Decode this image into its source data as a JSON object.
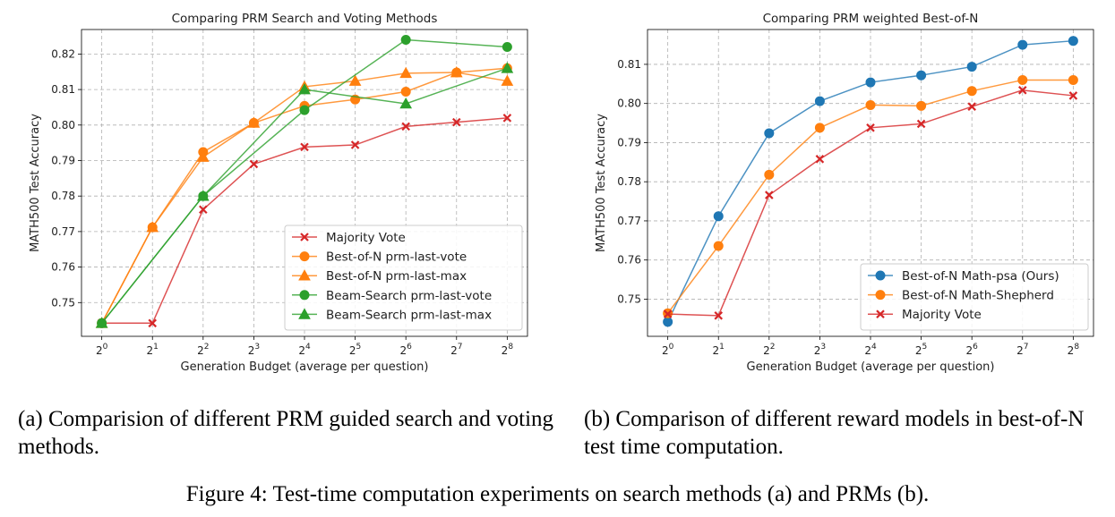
{
  "chart_data": [
    {
      "type": "line",
      "title": "Comparing PRM Search and Voting Methods",
      "xlabel": "Generation Budget (average per question)",
      "ylabel": "MATH500 Test Accuracy",
      "x": [
        0,
        1,
        2,
        3,
        4,
        5,
        6,
        7,
        8
      ],
      "xtick_base": "2",
      "xlim": [
        -0.4,
        8.4
      ],
      "ylim": [
        0.7405,
        0.8269
      ],
      "yticks": [
        0.75,
        0.76,
        0.77,
        0.78,
        0.79,
        0.8,
        0.81,
        0.82
      ],
      "ytick_labels": [
        "0.75",
        "0.76",
        "0.77",
        "0.78",
        "0.79",
        "0.80",
        "0.81",
        "0.82"
      ],
      "grid": true,
      "legend_position": "lower-right",
      "series": [
        {
          "name": "Majority Vote",
          "color": "#d62728",
          "marker": "x",
          "x": [
            0,
            1,
            2,
            3,
            4,
            5,
            6,
            7,
            8
          ],
          "values": [
            0.7442,
            0.7442,
            0.7762,
            0.789,
            0.7938,
            0.7944,
            0.7996,
            0.8008,
            0.802
          ]
        },
        {
          "name": "Best-of-N prm-last-vote",
          "color": "#ff7f0e",
          "marker": "o",
          "x": [
            0,
            1,
            2,
            3,
            4,
            5,
            6,
            7,
            8
          ],
          "values": [
            0.7442,
            0.7712,
            0.7924,
            0.8006,
            0.8054,
            0.8072,
            0.8094,
            0.8148,
            0.816
          ]
        },
        {
          "name": "Best-of-N prm-last-max",
          "color": "#ff7f0e",
          "marker": "^",
          "x": [
            0,
            1,
            2,
            3,
            4,
            5,
            6,
            7,
            8
          ],
          "values": [
            0.7442,
            0.7712,
            0.791,
            0.8006,
            0.8108,
            0.8124,
            0.8146,
            0.8148,
            0.8124
          ]
        },
        {
          "name": "Beam-Search prm-last-vote",
          "color": "#2ca02c",
          "marker": "o",
          "x": [
            0,
            2,
            4,
            6,
            8
          ],
          "values": [
            0.7442,
            0.78,
            0.8042,
            0.824,
            0.822
          ]
        },
        {
          "name": "Beam-Search prm-last-max",
          "color": "#2ca02c",
          "marker": "^",
          "x": [
            0,
            2,
            4,
            6,
            8
          ],
          "values": [
            0.7442,
            0.78,
            0.81,
            0.806,
            0.816
          ]
        }
      ]
    },
    {
      "type": "line",
      "title": "Comparing PRM weighted Best-of-N",
      "xlabel": "Generation Budget (average per question)",
      "ylabel": "MATH500 Test Accuracy",
      "x": [
        0,
        1,
        2,
        3,
        4,
        5,
        6,
        7,
        8
      ],
      "xtick_base": "2",
      "xlim": [
        -0.4,
        8.4
      ],
      "ylim": [
        0.7405,
        0.8189
      ],
      "yticks": [
        0.75,
        0.76,
        0.77,
        0.78,
        0.79,
        0.8,
        0.81
      ],
      "ytick_labels": [
        "0.75",
        "0.76",
        "0.77",
        "0.78",
        "0.79",
        "0.80",
        "0.81"
      ],
      "grid": true,
      "legend_position": "lower-right",
      "series": [
        {
          "name": "Best-of-N Math-psa (Ours)",
          "color": "#1f77b4",
          "marker": "o",
          "x": [
            0,
            1,
            2,
            3,
            4,
            5,
            6,
            7,
            8
          ],
          "values": [
            0.7442,
            0.7712,
            0.7924,
            0.8006,
            0.8054,
            0.8072,
            0.8094,
            0.815,
            0.816
          ]
        },
        {
          "name": "Best-of-N Math-Shepherd",
          "color": "#ff7f0e",
          "marker": "o",
          "x": [
            0,
            1,
            2,
            3,
            4,
            5,
            6,
            7,
            8
          ],
          "values": [
            0.7464,
            0.7636,
            0.7818,
            0.7938,
            0.7996,
            0.7994,
            0.8032,
            0.806,
            0.806
          ]
        },
        {
          "name": "Majority Vote",
          "color": "#d62728",
          "marker": "x",
          "x": [
            0,
            1,
            2,
            3,
            4,
            5,
            6,
            7,
            8
          ],
          "values": [
            0.7462,
            0.7458,
            0.7766,
            0.7858,
            0.7938,
            0.7948,
            0.7992,
            0.8034,
            0.802
          ]
        }
      ]
    }
  ],
  "captions": {
    "a": "(a) Comparision of different PRM guided search and voting methods.",
    "b": "(b) Comparison of different reward models in best-of-N test time computation.",
    "figure": "Figure 4: Test-time computation experiments on search methods (a) and PRMs (b)."
  }
}
